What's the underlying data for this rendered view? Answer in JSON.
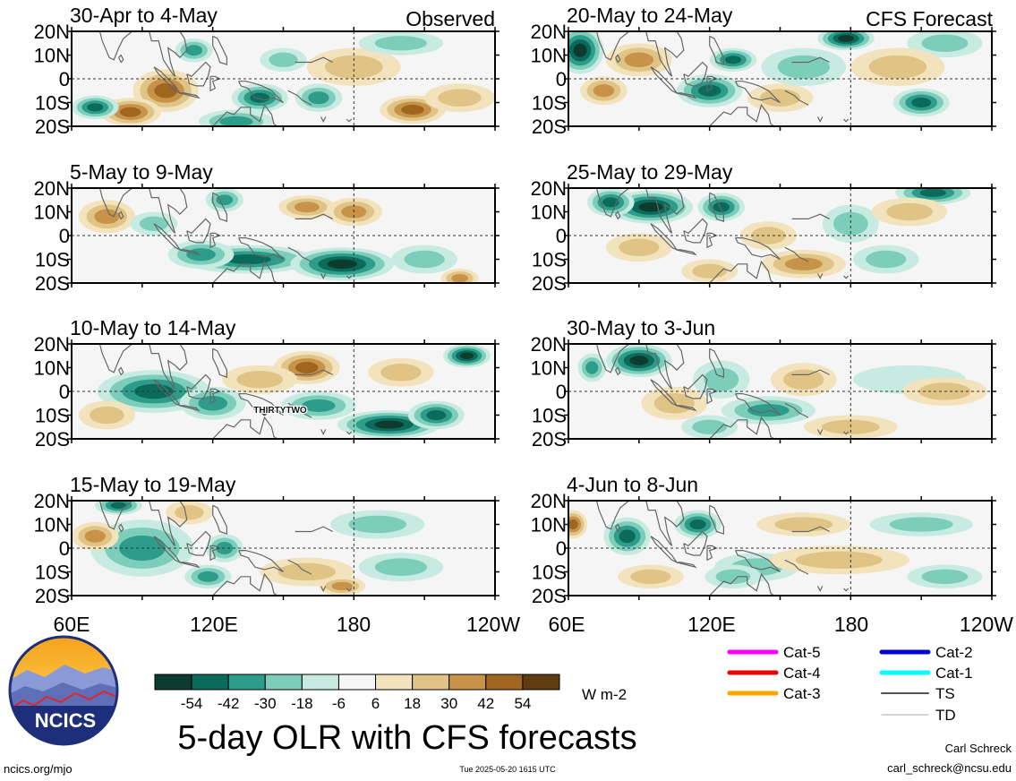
{
  "figure": {
    "title": "5-day OLR with CFS forecasts",
    "units": "W m-2",
    "timestamp": "Tue 2025-05-20 1615 UTC",
    "website": "ncics.org/mjo",
    "author": "Carl Schreck",
    "email": "carl_schreck@ncsu.edu",
    "logo_text": "NCICS",
    "observed_label": "Observed",
    "forecast_label": "CFS Forecast",
    "storm_label": "THIRTYTWO"
  },
  "colors": {
    "neg": [
      "#0d3b2e",
      "#0b6b5b",
      "#2e9c8b",
      "#7ccdb9",
      "#c8ebe1"
    ],
    "neutral": "#f5f5f5",
    "pos": [
      "#f3e3bd",
      "#dfc486",
      "#c89249",
      "#a0661f",
      "#5f3d10"
    ],
    "coast": "#666666"
  },
  "colorbar": {
    "ticks": [
      "-54",
      "-42",
      "-30",
      "-18",
      "-6",
      "6",
      "18",
      "30",
      "42",
      "54"
    ]
  },
  "chart_data": {
    "type": "heatmap",
    "variable": "OLR anomaly",
    "x_ticks": [
      "60E",
      "120E",
      "180",
      "120W"
    ],
    "y_ticks": [
      "20N",
      "10N",
      "0",
      "10S",
      "20S"
    ],
    "xlim": [
      60,
      240
    ],
    "ylim": [
      -20,
      20
    ],
    "legend": [
      {
        "label": "Cat-5",
        "color": "#ff00ff"
      },
      {
        "label": "Cat-4",
        "color": "#ee0000"
      },
      {
        "label": "Cat-3",
        "color": "#ffa500"
      },
      {
        "label": "Cat-2",
        "color": "#0000cc"
      },
      {
        "label": "Cat-1",
        "color": "#00ffff"
      },
      {
        "label": "TS",
        "color": "#555555"
      },
      {
        "label": "TD",
        "color": "#aaaaaa"
      }
    ],
    "panels": [
      {
        "title": "30-Apr to 4-May",
        "blobs": [
          [
            100,
            -5,
            14,
            9,
            42
          ],
          [
            85,
            -14,
            13,
            6,
            48
          ],
          [
            205,
            -13,
            14,
            6,
            42
          ],
          [
            70,
            -12,
            10,
            5,
            -42
          ],
          [
            140,
            -8,
            12,
            6,
            -42
          ],
          [
            165,
            -8,
            10,
            6,
            -30
          ],
          [
            112,
            12,
            8,
            5,
            -30
          ],
          [
            150,
            8,
            10,
            5,
            -18
          ],
          [
            180,
            5,
            20,
            8,
            18
          ],
          [
            225,
            -8,
            15,
            6,
            18
          ],
          [
            130,
            -18,
            16,
            5,
            -30
          ],
          [
            200,
            15,
            18,
            5,
            -18
          ]
        ]
      },
      {
        "title": "5-May to 9-May",
        "blobs": [
          [
            135,
            -10,
            28,
            6,
            -48
          ],
          [
            175,
            -12,
            22,
            7,
            -54
          ],
          [
            115,
            -8,
            14,
            6,
            -30
          ],
          [
            75,
            8,
            12,
            7,
            30
          ],
          [
            180,
            10,
            12,
            6,
            30
          ],
          [
            125,
            15,
            8,
            5,
            -30
          ],
          [
            210,
            -10,
            14,
            6,
            -18
          ],
          [
            225,
            -18,
            8,
            4,
            30
          ],
          [
            95,
            5,
            10,
            5,
            -18
          ],
          [
            160,
            12,
            12,
            5,
            30
          ]
        ]
      },
      {
        "title": "10-May to 14-May",
        "blobs": [
          [
            95,
            0,
            24,
            9,
            -42
          ],
          [
            120,
            -5,
            14,
            7,
            -30
          ],
          [
            195,
            -14,
            22,
            6,
            -54
          ],
          [
            165,
            -6,
            16,
            6,
            -30
          ],
          [
            160,
            10,
            14,
            7,
            42
          ],
          [
            228,
            15,
            10,
            5,
            -54
          ],
          [
            215,
            -10,
            12,
            6,
            -42
          ],
          [
            75,
            -10,
            12,
            6,
            18
          ],
          [
            140,
            5,
            16,
            6,
            18
          ],
          [
            200,
            8,
            14,
            6,
            18
          ]
        ]
      },
      {
        "title": "15-May to 19-May",
        "blobs": [
          [
            90,
            0,
            22,
            12,
            -30
          ],
          [
            118,
            -12,
            10,
            5,
            -30
          ],
          [
            125,
            0,
            8,
            6,
            -30
          ],
          [
            80,
            18,
            10,
            4,
            -42
          ],
          [
            160,
            -10,
            20,
            6,
            18
          ],
          [
            190,
            10,
            20,
            6,
            -18
          ],
          [
            200,
            -8,
            18,
            6,
            -18
          ],
          [
            70,
            5,
            10,
            6,
            30
          ],
          [
            175,
            -16,
            10,
            4,
            30
          ],
          [
            110,
            15,
            10,
            5,
            18
          ]
        ]
      },
      {
        "title": "20-May to 24-May",
        "blobs": [
          [
            65,
            12,
            10,
            10,
            -54
          ],
          [
            90,
            8,
            14,
            7,
            30
          ],
          [
            120,
            -5,
            14,
            7,
            -42
          ],
          [
            130,
            8,
            10,
            5,
            -42
          ],
          [
            178,
            17,
            12,
            5,
            -54
          ],
          [
            210,
            -10,
            12,
            6,
            -42
          ],
          [
            150,
            -8,
            14,
            6,
            18
          ],
          [
            160,
            5,
            18,
            8,
            -18
          ],
          [
            220,
            15,
            16,
            6,
            -18
          ],
          [
            200,
            5,
            20,
            8,
            18
          ],
          [
            75,
            -5,
            10,
            6,
            30
          ]
        ]
      },
      {
        "title": "25-May to 29-May",
        "blobs": [
          [
            95,
            12,
            18,
            7,
            -54
          ],
          [
            78,
            14,
            10,
            6,
            -42
          ],
          [
            125,
            12,
            10,
            6,
            -42
          ],
          [
            215,
            18,
            16,
            5,
            -42
          ],
          [
            90,
            -5,
            14,
            6,
            18
          ],
          [
            160,
            -12,
            18,
            6,
            30
          ],
          [
            195,
            -10,
            14,
            6,
            -18
          ],
          [
            180,
            5,
            12,
            8,
            -18
          ],
          [
            205,
            10,
            16,
            6,
            18
          ],
          [
            145,
            0,
            12,
            6,
            18
          ],
          [
            120,
            -15,
            12,
            5,
            18
          ]
        ]
      },
      {
        "title": "30-May to 3-Jun",
        "blobs": [
          [
            90,
            13,
            14,
            7,
            -54
          ],
          [
            70,
            10,
            6,
            6,
            -30
          ],
          [
            125,
            5,
            12,
            8,
            -18
          ],
          [
            145,
            -8,
            20,
            6,
            -30
          ],
          [
            120,
            -15,
            12,
            5,
            -18
          ],
          [
            105,
            -5,
            14,
            7,
            18
          ],
          [
            160,
            5,
            14,
            7,
            18
          ],
          [
            205,
            5,
            24,
            6,
            -6
          ],
          [
            220,
            0,
            18,
            6,
            18
          ],
          [
            180,
            -15,
            20,
            5,
            18
          ]
        ]
      },
      {
        "title": "4-Jun to 8-Jun",
        "blobs": [
          [
            62,
            10,
            6,
            6,
            42
          ],
          [
            85,
            5,
            10,
            8,
            -42
          ],
          [
            115,
            10,
            10,
            6,
            -42
          ],
          [
            140,
            -8,
            18,
            6,
            -18
          ],
          [
            175,
            -5,
            30,
            6,
            18
          ],
          [
            160,
            10,
            20,
            5,
            18
          ],
          [
            210,
            10,
            22,
            5,
            -18
          ],
          [
            95,
            -12,
            14,
            5,
            18
          ],
          [
            220,
            -12,
            16,
            5,
            -18
          ],
          [
            130,
            -12,
            12,
            5,
            -18
          ]
        ]
      }
    ]
  }
}
